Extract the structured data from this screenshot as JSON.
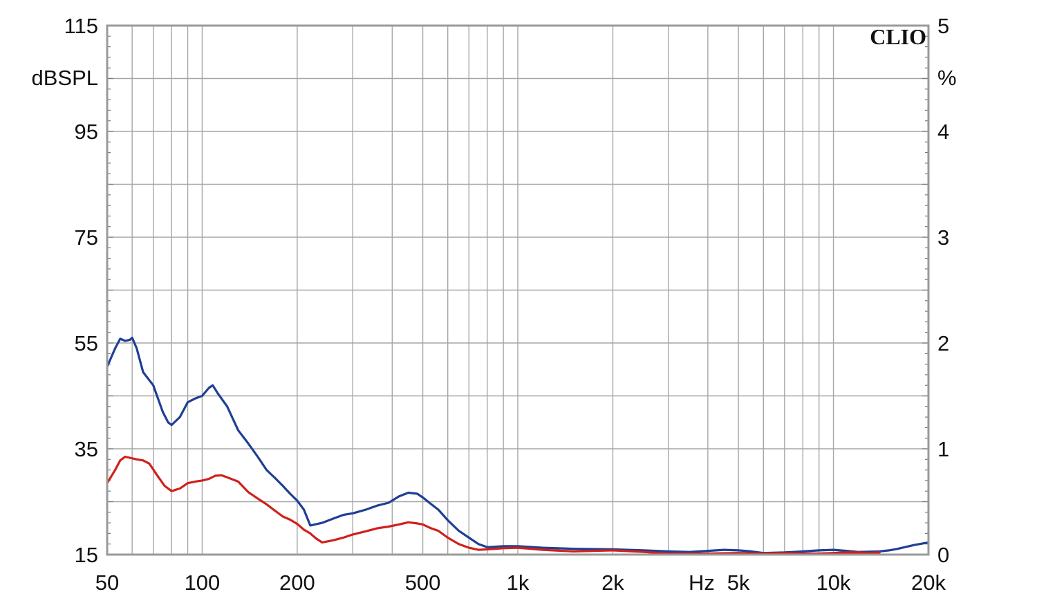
{
  "chart_data": {
    "type": "line",
    "x_scale": "log",
    "xlim": [
      50,
      20000
    ],
    "ylim": [
      15,
      115
    ],
    "y2lim": [
      0,
      5
    ],
    "grid": true,
    "brand": "CLIO",
    "ylabel": "dBSPL",
    "y2label": "%",
    "xlabel": "Hz",
    "x_ticks": [
      {
        "value": 50,
        "label": "50"
      },
      {
        "value": 100,
        "label": "100"
      },
      {
        "value": 200,
        "label": "200"
      },
      {
        "value": 500,
        "label": "500"
      },
      {
        "value": 1000,
        "label": "1k"
      },
      {
        "value": 2000,
        "label": "2k"
      },
      {
        "value": 5000,
        "label": "5k"
      },
      {
        "value": 10000,
        "label": "10k"
      },
      {
        "value": 20000,
        "label": "20k"
      }
    ],
    "y_ticks": [
      {
        "value": 115,
        "label": "115"
      },
      {
        "value": 95,
        "label": "95"
      },
      {
        "value": 75,
        "label": "75"
      },
      {
        "value": 55,
        "label": "55"
      },
      {
        "value": 35,
        "label": "35"
      },
      {
        "value": 15,
        "label": "15"
      }
    ],
    "y2_ticks": [
      {
        "value": 5,
        "label": "5"
      },
      {
        "value": 4,
        "label": "4"
      },
      {
        "value": 3,
        "label": "3"
      },
      {
        "value": 2,
        "label": "2"
      },
      {
        "value": 1,
        "label": "1"
      },
      {
        "value": 0,
        "label": "0"
      }
    ],
    "series": [
      {
        "color": "#1f3f94",
        "points": [
          [
            50,
            50.5
          ],
          [
            53,
            54.0
          ],
          [
            55,
            55.8
          ],
          [
            57,
            55.4
          ],
          [
            59,
            55.6
          ],
          [
            60,
            56.0
          ],
          [
            62,
            54.0
          ],
          [
            65,
            49.5
          ],
          [
            70,
            47.0
          ],
          [
            75,
            42.0
          ],
          [
            78,
            40.0
          ],
          [
            80,
            39.5
          ],
          [
            85,
            41.0
          ],
          [
            90,
            43.8
          ],
          [
            95,
            44.5
          ],
          [
            100,
            45.0
          ],
          [
            105,
            46.5
          ],
          [
            108,
            47.0
          ],
          [
            112,
            45.5
          ],
          [
            120,
            43.0
          ],
          [
            130,
            38.5
          ],
          [
            140,
            36.0
          ],
          [
            150,
            33.5
          ],
          [
            160,
            31.0
          ],
          [
            170,
            29.5
          ],
          [
            180,
            28.0
          ],
          [
            190,
            26.5
          ],
          [
            200,
            25.2
          ],
          [
            210,
            23.5
          ],
          [
            220,
            20.5
          ],
          [
            240,
            21.0
          ],
          [
            260,
            21.8
          ],
          [
            280,
            22.5
          ],
          [
            300,
            22.8
          ],
          [
            330,
            23.5
          ],
          [
            360,
            24.3
          ],
          [
            390,
            24.8
          ],
          [
            420,
            26.0
          ],
          [
            450,
            26.7
          ],
          [
            480,
            26.5
          ],
          [
            500,
            25.8
          ],
          [
            530,
            24.6
          ],
          [
            560,
            23.5
          ],
          [
            600,
            21.5
          ],
          [
            650,
            19.5
          ],
          [
            700,
            18.2
          ],
          [
            750,
            17.0
          ],
          [
            800,
            16.4
          ],
          [
            900,
            16.6
          ],
          [
            1000,
            16.6
          ],
          [
            1200,
            16.3
          ],
          [
            1500,
            16.1
          ],
          [
            2000,
            16.0
          ],
          [
            2500,
            15.8
          ],
          [
            3000,
            15.6
          ],
          [
            3500,
            15.5
          ],
          [
            4000,
            15.7
          ],
          [
            4500,
            15.9
          ],
          [
            5000,
            15.8
          ],
          [
            5500,
            15.6
          ],
          [
            6000,
            15.3
          ],
          [
            7000,
            15.4
          ],
          [
            8000,
            15.6
          ],
          [
            9000,
            15.8
          ],
          [
            10000,
            15.9
          ],
          [
            11000,
            15.7
          ],
          [
            12000,
            15.5
          ],
          [
            14000,
            15.6
          ],
          [
            15000,
            15.8
          ],
          [
            16000,
            16.1
          ],
          [
            18000,
            16.8
          ],
          [
            20000,
            17.3
          ]
        ]
      },
      {
        "color": "#d0201c",
        "points": [
          [
            50,
            28.5
          ],
          [
            53,
            31.0
          ],
          [
            55,
            32.8
          ],
          [
            57,
            33.5
          ],
          [
            59,
            33.3
          ],
          [
            62,
            33.0
          ],
          [
            65,
            32.8
          ],
          [
            68,
            32.2
          ],
          [
            72,
            30.0
          ],
          [
            76,
            28.0
          ],
          [
            80,
            27.0
          ],
          [
            85,
            27.5
          ],
          [
            90,
            28.5
          ],
          [
            95,
            28.8
          ],
          [
            100,
            29.0
          ],
          [
            105,
            29.3
          ],
          [
            110,
            29.9
          ],
          [
            115,
            30.0
          ],
          [
            120,
            29.6
          ],
          [
            130,
            28.8
          ],
          [
            140,
            26.8
          ],
          [
            150,
            25.6
          ],
          [
            160,
            24.5
          ],
          [
            170,
            23.3
          ],
          [
            180,
            22.2
          ],
          [
            190,
            21.6
          ],
          [
            200,
            20.8
          ],
          [
            210,
            19.7
          ],
          [
            220,
            19.0
          ],
          [
            230,
            18.0
          ],
          [
            240,
            17.3
          ],
          [
            260,
            17.7
          ],
          [
            280,
            18.2
          ],
          [
            300,
            18.8
          ],
          [
            330,
            19.4
          ],
          [
            360,
            20.0
          ],
          [
            390,
            20.3
          ],
          [
            420,
            20.7
          ],
          [
            450,
            21.1
          ],
          [
            480,
            20.9
          ],
          [
            500,
            20.7
          ],
          [
            530,
            20.0
          ],
          [
            560,
            19.5
          ],
          [
            600,
            18.2
          ],
          [
            650,
            17.0
          ],
          [
            700,
            16.3
          ],
          [
            750,
            15.9
          ],
          [
            800,
            16.0
          ],
          [
            900,
            16.2
          ],
          [
            1000,
            16.3
          ],
          [
            1200,
            15.9
          ],
          [
            1500,
            15.6
          ],
          [
            2000,
            15.8
          ],
          [
            2500,
            15.5
          ],
          [
            3000,
            15.2
          ],
          [
            4000,
            15.2
          ],
          [
            5000,
            15.3
          ],
          [
            6000,
            15.2
          ],
          [
            7000,
            15.3
          ],
          [
            8000,
            15.2
          ],
          [
            9000,
            15.2
          ],
          [
            10000,
            15.3
          ],
          [
            11000,
            15.4
          ],
          [
            12000,
            15.4
          ],
          [
            13000,
            15.3
          ],
          [
            14000,
            15.4
          ]
        ]
      }
    ]
  }
}
